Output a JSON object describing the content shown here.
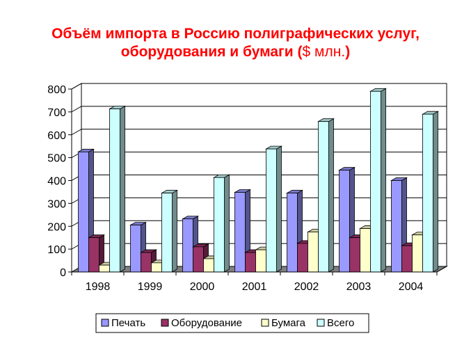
{
  "title_line1": "Объём импорта в Россию полиграфических услуг,",
  "title_line2": "оборудования и бумаги (",
  "title_unit": "$ млн.",
  "title_close": ")",
  "chart_data": {
    "type": "bar",
    "title": "Объём импорта в Россию полиграфических услуг, оборудования и бумаги ($ млн.)",
    "categories": [
      "1998",
      "1999",
      "2000",
      "2001",
      "2002",
      "2003",
      "2004"
    ],
    "series": [
      {
        "name": "Печать",
        "color": "#9999ff",
        "values": [
          525,
          205,
          232,
          348,
          345,
          445,
          400
        ]
      },
      {
        "name": "Оборудование",
        "color": "#993366",
        "values": [
          150,
          85,
          110,
          85,
          125,
          150,
          115
        ]
      },
      {
        "name": "Бумага",
        "color": "#ffffcc",
        "values": [
          30,
          40,
          58,
          97,
          175,
          190,
          162
        ]
      },
      {
        "name": "Всего",
        "color": "#ccffff",
        "values": [
          713,
          345,
          413,
          538,
          658,
          790,
          690
        ]
      }
    ],
    "yticks": [
      "0",
      "100",
      "200",
      "300",
      "400",
      "500",
      "600",
      "700",
      "800"
    ],
    "ylim": [
      0,
      800
    ],
    "grid": true,
    "legend": "bottom"
  }
}
